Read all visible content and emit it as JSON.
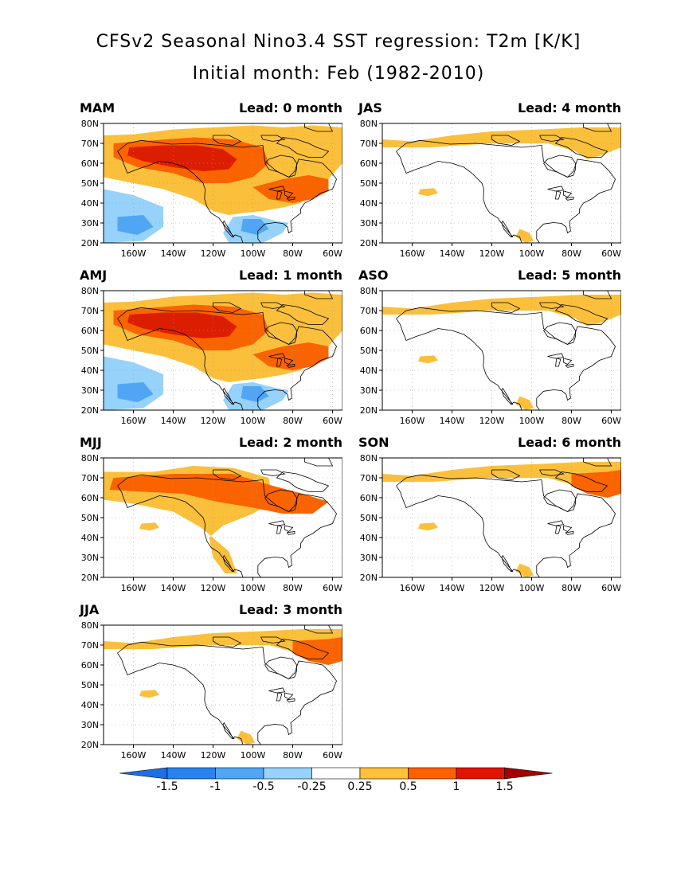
{
  "title": {
    "line1": "CFSv2 Seasonal Nino3.4 SST regression: T2m [K/K]",
    "line2": "Initial month: Feb (1982-2010)"
  },
  "lat_labels": [
    "80N",
    "70N",
    "60N",
    "50N",
    "40N",
    "30N",
    "20N"
  ],
  "lon_labels": [
    "160W",
    "140W",
    "120W",
    "100W",
    "80W",
    "60W"
  ],
  "panels": [
    {
      "season": "MAM",
      "lead": "Lead: 0 month",
      "intensity": 3,
      "south_cold": true
    },
    {
      "season": "JAS",
      "lead": "Lead: 4 month",
      "intensity": 0,
      "south_cold": false
    },
    {
      "season": "AMJ",
      "lead": "Lead: 1 month",
      "intensity": 3,
      "south_cold": true
    },
    {
      "season": "ASO",
      "lead": "Lead: 5 month",
      "intensity": 0,
      "south_cold": false
    },
    {
      "season": "MJJ",
      "lead": "Lead: 2 month",
      "intensity": 2,
      "south_cold": false
    },
    {
      "season": "SON",
      "lead": "Lead: 6 month",
      "intensity": 1,
      "south_cold": false
    },
    {
      "season": "JJA",
      "lead": "Lead: 3 month",
      "intensity": 1,
      "south_cold": false
    }
  ],
  "colorbar": {
    "labels": [
      "-1.5",
      "-1",
      "-0.5",
      "-0.25",
      "0.25",
      "0.5",
      "1",
      "1.5"
    ],
    "colors": [
      "#1e6ee6",
      "#2882f0",
      "#50a5f5",
      "#96d2fa",
      "#ffffff",
      "#ffc03c",
      "#ff6000",
      "#e11400",
      "#a50000"
    ]
  },
  "palette": {
    "light_orange": "#fac03c",
    "orange": "#fa6400",
    "red": "#dc1e00",
    "dark_red": "#a00000",
    "light_blue": "#96d2fa",
    "blue": "#50a5f5",
    "med_blue": "#2882f0"
  }
}
